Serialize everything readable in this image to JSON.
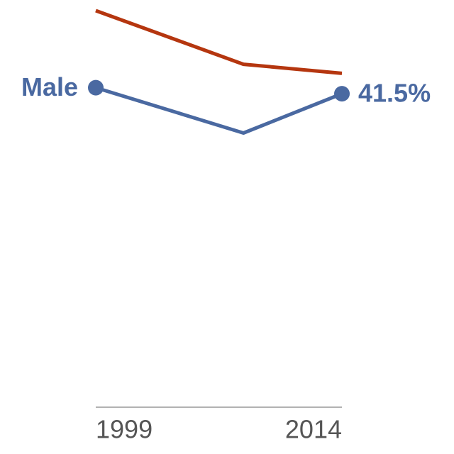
{
  "chart_data": {
    "type": "line",
    "x": [
      1999,
      2008,
      2014
    ],
    "series": [
      {
        "name": "Male",
        "color": "#4a69a1",
        "values": [
          42.3,
          36.3,
          41.5
        ],
        "value_labels": [
          null,
          null,
          "41.5%"
        ]
      },
      {
        "color": "#b5360f",
        "values": [
          52.5,
          45.4,
          44.2
        ]
      }
    ],
    "xlim": [
      1999,
      2014
    ],
    "xticks": [
      1999,
      2014
    ],
    "ylim": [
      0,
      52.5
    ],
    "grid": false
  }
}
